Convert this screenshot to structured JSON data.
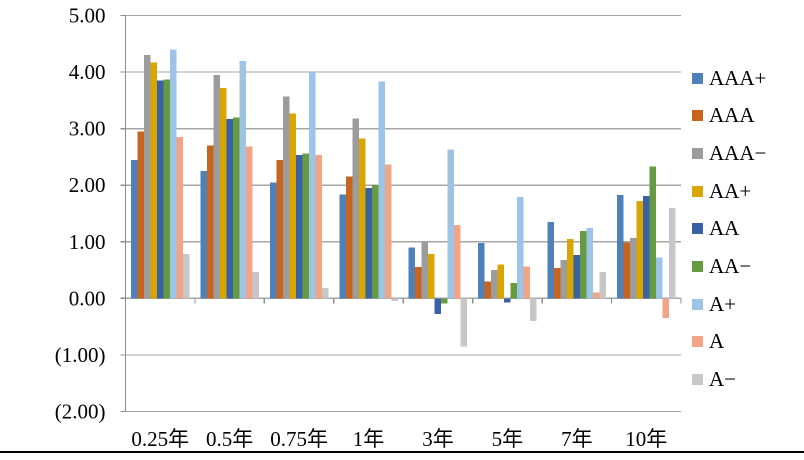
{
  "chart_data": {
    "type": "bar",
    "title": "",
    "xlabel": "",
    "ylabel": "",
    "categories": [
      "0.25年",
      "0.5年",
      "0.75年",
      "1年",
      "3年",
      "5年",
      "7年",
      "10年"
    ],
    "series": [
      {
        "name": "AAA+",
        "color": "#4E81B8",
        "values": [
          2.45,
          2.25,
          2.05,
          1.84,
          0.9,
          0.98,
          1.35,
          1.83
        ]
      },
      {
        "name": "AAA",
        "color": "#C9641F",
        "values": [
          2.95,
          2.7,
          2.45,
          2.15,
          0.55,
          0.3,
          0.54,
          0.99
        ]
      },
      {
        "name": "AAA−",
        "color": "#9C9C9C",
        "values": [
          4.3,
          3.95,
          3.57,
          3.18,
          1.0,
          0.5,
          0.68,
          1.07
        ]
      },
      {
        "name": "AA+",
        "color": "#D9A500",
        "values": [
          4.17,
          3.72,
          3.27,
          2.83,
          0.78,
          0.6,
          1.05,
          1.72
        ]
      },
      {
        "name": "AA",
        "color": "#3A61A6",
        "values": [
          3.85,
          3.17,
          2.53,
          1.95,
          -0.28,
          -0.07,
          0.77,
          1.81
        ]
      },
      {
        "name": "AA−",
        "color": "#669B41",
        "values": [
          3.87,
          3.2,
          2.56,
          2.0,
          -0.09,
          0.27,
          1.19,
          2.33
        ]
      },
      {
        "name": "A+",
        "color": "#9DC3E6",
        "values": [
          4.4,
          4.2,
          4.0,
          3.83,
          2.63,
          1.79,
          1.24,
          0.72
        ]
      },
      {
        "name": "A",
        "color": "#F2A586",
        "values": [
          2.85,
          2.68,
          2.53,
          2.37,
          1.3,
          0.56,
          0.1,
          -0.35
        ]
      },
      {
        "name": "A−",
        "color": "#C7C7C7",
        "values": [
          0.78,
          0.47,
          0.18,
          -0.05,
          -0.85,
          -0.4,
          0.47,
          1.6
        ]
      }
    ],
    "ylim": [
      -2,
      5
    ],
    "ytick_step": 1,
    "ytick_labels": [
      "(2.00)",
      "(1.00)",
      "0.00",
      "1.00",
      "2.00",
      "3.00",
      "4.00",
      "5.00"
    ],
    "grid": true,
    "legend_position": "right"
  },
  "colors": {
    "negative_tick_label": "#FF0000",
    "positive_tick_label": "#000000",
    "gridline": "#A6A6A6",
    "axis_line": "#8C8C8C",
    "page_rule": "#000000",
    "background": "#FFFFFF"
  }
}
